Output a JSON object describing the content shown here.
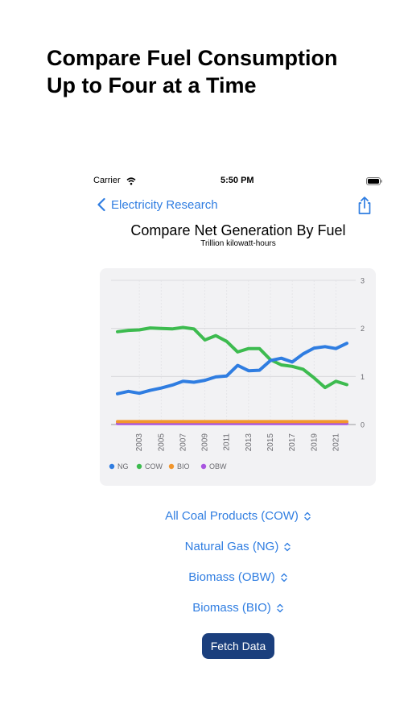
{
  "headline": {
    "line1": "Compare Fuel Consumption",
    "line2": "Up to Four at a Time"
  },
  "status_bar": {
    "carrier": "Carrier",
    "time": "5:50 PM"
  },
  "nav": {
    "back_label": "Electricity Research"
  },
  "chart_header": {
    "title": "Compare Net Generation By Fuel",
    "subtitle": "Trillion kilowatt-hours"
  },
  "chart_data": {
    "type": "line",
    "title": "Compare Net Generation By Fuel",
    "subtitle": "Trillion kilowatt-hours",
    "x": [
      2001,
      2002,
      2003,
      2004,
      2005,
      2006,
      2007,
      2008,
      2009,
      2010,
      2011,
      2012,
      2013,
      2014,
      2015,
      2016,
      2017,
      2018,
      2019,
      2020,
      2021,
      2022
    ],
    "x_ticks": [
      "2003",
      "2005",
      "2007",
      "2009",
      "2011",
      "2013",
      "2015",
      "2017",
      "2019",
      "2021"
    ],
    "ylim": [
      0,
      3
    ],
    "y_ticks": [
      "0",
      "1",
      "2",
      "3"
    ],
    "grid": true,
    "legend_position": "bottom-left",
    "series": [
      {
        "name": "NG",
        "color": "#2f7de1",
        "values": [
          0.64,
          0.69,
          0.65,
          0.71,
          0.76,
          0.82,
          0.9,
          0.88,
          0.92,
          0.99,
          1.01,
          1.23,
          1.12,
          1.13,
          1.33,
          1.38,
          1.3,
          1.47,
          1.59,
          1.62,
          1.58,
          1.69
        ]
      },
      {
        "name": "COW",
        "color": "#3dbb4f",
        "values": [
          1.93,
          1.96,
          1.97,
          2.01,
          2.0,
          1.99,
          2.02,
          1.99,
          1.76,
          1.85,
          1.73,
          1.51,
          1.58,
          1.58,
          1.35,
          1.24,
          1.21,
          1.15,
          0.97,
          0.77,
          0.9,
          0.83
        ]
      },
      {
        "name": "BIO",
        "color": "#f2962c",
        "values": [
          0.06,
          0.06,
          0.06,
          0.06,
          0.06,
          0.06,
          0.06,
          0.06,
          0.06,
          0.06,
          0.06,
          0.06,
          0.06,
          0.06,
          0.06,
          0.06,
          0.06,
          0.06,
          0.06,
          0.06,
          0.06,
          0.06
        ]
      },
      {
        "name": "OBW",
        "color": "#a855e0",
        "values": [
          0.02,
          0.02,
          0.02,
          0.02,
          0.02,
          0.02,
          0.02,
          0.02,
          0.02,
          0.02,
          0.02,
          0.02,
          0.02,
          0.02,
          0.02,
          0.02,
          0.02,
          0.02,
          0.02,
          0.02,
          0.02,
          0.02
        ]
      }
    ]
  },
  "pickers": [
    {
      "label": "All Coal Products (COW)"
    },
    {
      "label": "Natural Gas (NG)"
    },
    {
      "label": "Biomass (OBW)"
    },
    {
      "label": "Biomass (BIO)"
    }
  ],
  "fetch_button": {
    "label": "Fetch Data"
  },
  "icons": {
    "back": "chevron-left-icon",
    "share": "share-icon",
    "wifi": "wifi-icon",
    "battery": "battery-icon",
    "picker": "up-down-chevron-icon"
  }
}
